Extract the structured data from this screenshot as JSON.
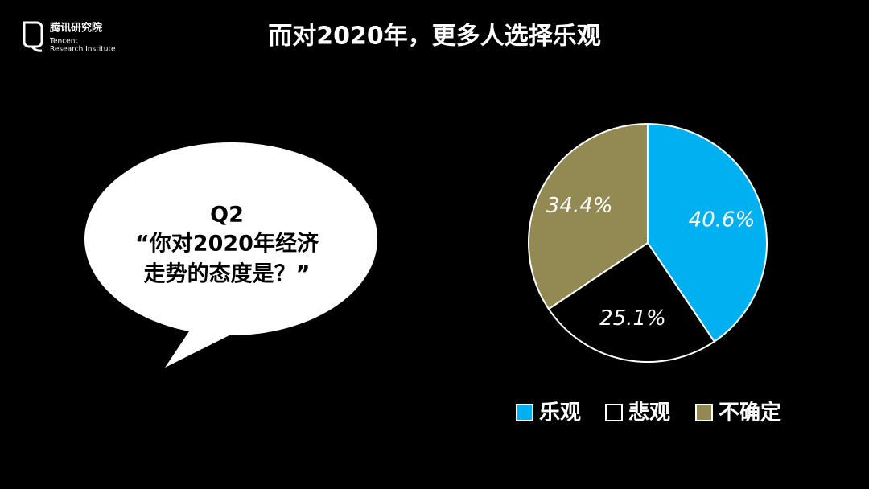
{
  "logo": {
    "name": "腾讯研究院",
    "line1": "Tencent",
    "line2": "Research Institute"
  },
  "bubble": {
    "lines": [
      "Q2",
      "“你对2020年经济",
      "走势的态度是？”"
    ]
  },
  "chart_data": {
    "type": "pie",
    "title": "而对2020年，更多人选择乐观",
    "categories": [
      "乐观",
      "悲观",
      "不确定"
    ],
    "values": [
      40.6,
      25.1,
      34.4
    ],
    "value_labels": [
      "40.6%",
      "25.1%",
      "34.4%"
    ],
    "colors": [
      "#00b0f0",
      "#000000",
      "#938953"
    ],
    "legend": "bottom"
  }
}
